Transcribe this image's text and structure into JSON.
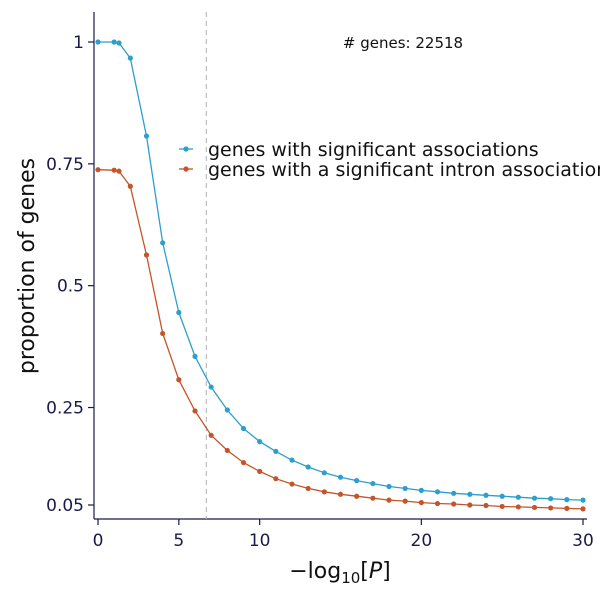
{
  "chart_data": {
    "type": "line",
    "title": "",
    "xlabel_prefix": "−log",
    "xlabel_sub": "10",
    "xlabel_var": "P",
    "ylabel": "proportion of genes",
    "xlim": [
      0,
      30
    ],
    "ylim": [
      0.05,
      1
    ],
    "xticks": [
      0,
      5,
      10,
      20,
      30
    ],
    "xtick_labels": [
      "0",
      "5",
      "10",
      "20",
      "30"
    ],
    "yticks": [
      0.05,
      0.25,
      0.5,
      0.75,
      1
    ],
    "ytick_labels": [
      "0.05",
      "0.25",
      "0.5",
      "0.75",
      "1"
    ],
    "threshold_x": 6.7,
    "annotation": "# genes: 22518",
    "legend_position": "upper-right",
    "grid": false,
    "x": [
      0,
      1,
      1.3,
      2,
      3,
      4,
      5,
      6,
      7,
      8,
      9,
      10,
      11,
      12,
      13,
      14,
      15,
      16,
      17,
      18,
      19,
      20,
      21,
      22,
      23,
      24,
      25,
      26,
      27,
      28,
      29,
      30
    ],
    "series": [
      {
        "name": "genes with significant associations",
        "color": "#2b9fcd",
        "values": [
          1.0,
          1.0,
          0.998,
          0.967,
          0.807,
          0.588,
          0.445,
          0.355,
          0.292,
          0.245,
          0.207,
          0.18,
          0.16,
          0.142,
          0.128,
          0.116,
          0.107,
          0.1,
          0.094,
          0.088,
          0.084,
          0.08,
          0.077,
          0.074,
          0.072,
          0.07,
          0.068,
          0.066,
          0.064,
          0.063,
          0.061,
          0.06
        ]
      },
      {
        "name": "genes with a significant intron association",
        "color": "#c4552a",
        "values": [
          0.738,
          0.737,
          0.735,
          0.704,
          0.563,
          0.402,
          0.307,
          0.243,
          0.193,
          0.162,
          0.137,
          0.119,
          0.104,
          0.093,
          0.084,
          0.077,
          0.072,
          0.068,
          0.064,
          0.06,
          0.058,
          0.055,
          0.053,
          0.052,
          0.05,
          0.049,
          0.047,
          0.046,
          0.045,
          0.044,
          0.043,
          0.042
        ]
      }
    ]
  }
}
